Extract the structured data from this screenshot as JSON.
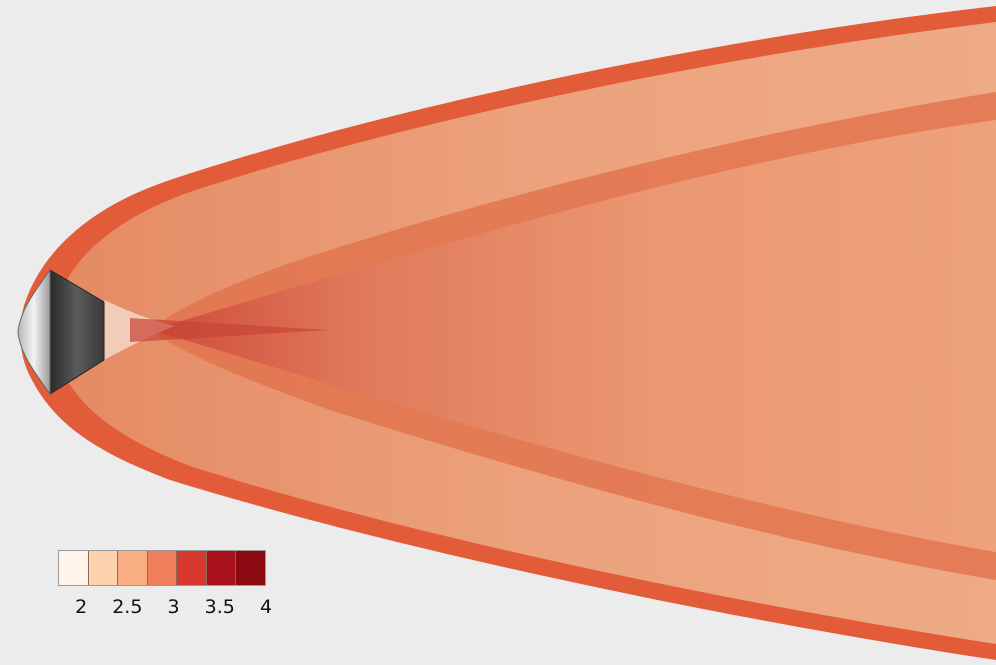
{
  "figure": {
    "background_color": "#ececec",
    "body_colors": {
      "heatshield": "#d8d8d8",
      "backshell": "#3a3a3a"
    },
    "field_colors": {
      "shock_edge": "#e25c3a",
      "outer_layer": "#e8946c",
      "core_wake": "#efa47c",
      "near_wake": "#cf4a3a",
      "free_stream": "#ececec"
    },
    "colorbar": {
      "ticks": [
        "2",
        "2.5",
        "3",
        "3.5",
        "4"
      ],
      "range": [
        1.75,
        4.0
      ],
      "segment_colors": [
        "#fff3ea",
        "#fdd3ae",
        "#f8ad82",
        "#ef7f5a",
        "#d6382e",
        "#a8131b",
        "#8b0a12"
      ]
    }
  }
}
